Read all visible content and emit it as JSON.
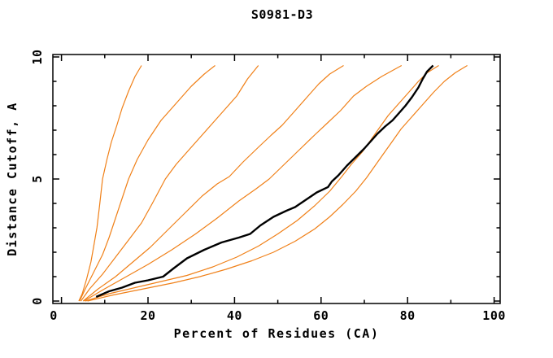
{
  "title": "S0981-D3",
  "colors": {
    "background": "#ffffff",
    "frame": "#000000",
    "orange_series": "#f08018",
    "black_series": "#000000",
    "text": "#000000"
  },
  "chart_data": {
    "type": "line",
    "title": "S0981-D3",
    "xlabel": "Percent of Residues (CA)",
    "ylabel": "Distance Cutoff, A",
    "xlim": [
      0,
      100
    ],
    "ylim": [
      0,
      10
    ],
    "grid": "off",
    "legend": "none",
    "x_major_ticks": [
      0,
      20,
      40,
      60,
      80,
      100
    ],
    "x_minor_ticks": [
      10,
      30,
      50,
      70,
      90
    ],
    "y_major_ticks": [
      0,
      5,
      10
    ],
    "y_minor_ticks": [
      1,
      2,
      3,
      4,
      6,
      7,
      8,
      9
    ],
    "series": [
      {
        "name": "orange-1",
        "color": "#f08018",
        "width": 1.2,
        "points": [
          [
            4.0,
            0
          ],
          [
            4.8,
            0.3
          ],
          [
            5.8,
            0.9
          ],
          [
            6.8,
            1.6
          ],
          [
            7.4,
            2.2
          ],
          [
            8.2,
            3.0
          ],
          [
            8.8,
            3.9
          ],
          [
            9.5,
            5.0
          ],
          [
            10.5,
            5.8
          ],
          [
            11.5,
            6.5
          ],
          [
            12.8,
            7.2
          ],
          [
            14.0,
            7.9
          ],
          [
            15.5,
            8.6
          ],
          [
            17.0,
            9.2
          ],
          [
            18.5,
            9.65
          ]
        ]
      },
      {
        "name": "orange-2",
        "color": "#f08018",
        "width": 1.2,
        "points": [
          [
            4.2,
            0
          ],
          [
            5.5,
            0.5
          ],
          [
            7.5,
            1.2
          ],
          [
            9.5,
            1.9
          ],
          [
            11.0,
            2.6
          ],
          [
            12.5,
            3.4
          ],
          [
            14.0,
            4.2
          ],
          [
            15.5,
            5.0
          ],
          [
            17.5,
            5.8
          ],
          [
            20.0,
            6.6
          ],
          [
            23.0,
            7.4
          ],
          [
            26.5,
            8.1
          ],
          [
            30.0,
            8.8
          ],
          [
            33.0,
            9.3
          ],
          [
            35.5,
            9.65
          ]
        ]
      },
      {
        "name": "orange-3",
        "color": "#f08018",
        "width": 1.2,
        "points": [
          [
            4.5,
            0
          ],
          [
            6.5,
            0.5
          ],
          [
            9.5,
            1.1
          ],
          [
            12.5,
            1.8
          ],
          [
            15.5,
            2.5
          ],
          [
            18.5,
            3.2
          ],
          [
            21.0,
            4.0
          ],
          [
            24.0,
            5.0
          ],
          [
            26.5,
            5.6
          ],
          [
            29.5,
            6.2
          ],
          [
            32.5,
            6.8
          ],
          [
            35.0,
            7.3
          ],
          [
            38.0,
            7.9
          ],
          [
            40.5,
            8.4
          ],
          [
            43.0,
            9.1
          ],
          [
            45.5,
            9.65
          ]
        ]
      },
      {
        "name": "orange-4",
        "color": "#f08018",
        "width": 1.2,
        "points": [
          [
            5.0,
            0
          ],
          [
            8.5,
            0.5
          ],
          [
            12.5,
            1.0
          ],
          [
            16.5,
            1.6
          ],
          [
            20.5,
            2.2
          ],
          [
            24.5,
            2.9
          ],
          [
            28.5,
            3.6
          ],
          [
            32.5,
            4.3
          ],
          [
            36.0,
            4.8
          ],
          [
            38.8,
            5.1
          ],
          [
            42.0,
            5.7
          ],
          [
            45.5,
            6.3
          ],
          [
            48.5,
            6.8
          ],
          [
            51.0,
            7.2
          ],
          [
            54.0,
            7.8
          ],
          [
            57.0,
            8.4
          ],
          [
            59.5,
            8.9
          ],
          [
            62.0,
            9.3
          ],
          [
            65.2,
            9.65
          ]
        ]
      },
      {
        "name": "orange-5",
        "color": "#f08018",
        "width": 1.2,
        "points": [
          [
            5.2,
            0
          ],
          [
            9.5,
            0.45
          ],
          [
            14.5,
            0.95
          ],
          [
            20.0,
            1.5
          ],
          [
            25.5,
            2.1
          ],
          [
            31.0,
            2.75
          ],
          [
            36.0,
            3.4
          ],
          [
            41.0,
            4.1
          ],
          [
            45.0,
            4.6
          ],
          [
            48.0,
            5.0
          ],
          [
            51.5,
            5.6
          ],
          [
            55.0,
            6.2
          ],
          [
            58.5,
            6.8
          ],
          [
            61.5,
            7.3
          ],
          [
            64.5,
            7.8
          ],
          [
            67.5,
            8.4
          ],
          [
            70.5,
            8.8
          ],
          [
            74.0,
            9.2
          ],
          [
            78.6,
            9.65
          ]
        ]
      },
      {
        "name": "orange-6",
        "color": "#f08018",
        "width": 1.2,
        "points": [
          [
            5.5,
            0
          ],
          [
            11.0,
            0.3
          ],
          [
            17.0,
            0.55
          ],
          [
            23.0,
            0.8
          ],
          [
            29.0,
            1.05
          ],
          [
            35.0,
            1.4
          ],
          [
            40.5,
            1.8
          ],
          [
            45.5,
            2.25
          ],
          [
            50.0,
            2.75
          ],
          [
            54.5,
            3.3
          ],
          [
            58.5,
            3.9
          ],
          [
            62.0,
            4.5
          ],
          [
            64.8,
            5.1
          ],
          [
            67.0,
            5.6
          ],
          [
            69.5,
            6.1
          ],
          [
            71.5,
            6.6
          ],
          [
            73.5,
            7.1
          ],
          [
            75.5,
            7.6
          ],
          [
            78.0,
            8.1
          ],
          [
            80.5,
            8.6
          ],
          [
            82.5,
            9.0
          ],
          [
            84.5,
            9.35
          ],
          [
            87.2,
            9.65
          ]
        ]
      },
      {
        "name": "orange-7",
        "color": "#f08018",
        "width": 1.2,
        "points": [
          [
            6.0,
            0
          ],
          [
            12.0,
            0.25
          ],
          [
            19.0,
            0.5
          ],
          [
            26.0,
            0.75
          ],
          [
            32.0,
            1.0
          ],
          [
            38.0,
            1.3
          ],
          [
            44.0,
            1.65
          ],
          [
            49.0,
            2.0
          ],
          [
            54.0,
            2.45
          ],
          [
            58.5,
            2.95
          ],
          [
            62.0,
            3.45
          ],
          [
            65.0,
            3.95
          ],
          [
            68.0,
            4.5
          ],
          [
            70.5,
            5.05
          ],
          [
            72.5,
            5.55
          ],
          [
            74.5,
            6.05
          ],
          [
            76.5,
            6.55
          ],
          [
            78.5,
            7.05
          ],
          [
            81.0,
            7.55
          ],
          [
            83.5,
            8.05
          ],
          [
            86.0,
            8.55
          ],
          [
            88.5,
            9.0
          ],
          [
            91.0,
            9.35
          ],
          [
            93.8,
            9.65
          ]
        ]
      },
      {
        "name": "black-target",
        "color": "#000000",
        "width": 2.4,
        "points": [
          [
            8.0,
            0.17
          ],
          [
            11.0,
            0.4
          ],
          [
            14.0,
            0.55
          ],
          [
            17.0,
            0.75
          ],
          [
            20.0,
            0.85
          ],
          [
            23.5,
            1.0
          ],
          [
            26.0,
            1.35
          ],
          [
            29.0,
            1.75
          ],
          [
            33.0,
            2.1
          ],
          [
            37.0,
            2.4
          ],
          [
            41.0,
            2.6
          ],
          [
            43.6,
            2.75
          ],
          [
            46.0,
            3.1
          ],
          [
            49.0,
            3.45
          ],
          [
            52.0,
            3.7
          ],
          [
            54.0,
            3.85
          ],
          [
            56.5,
            4.15
          ],
          [
            59.0,
            4.45
          ],
          [
            61.6,
            4.67
          ],
          [
            62.5,
            4.9
          ],
          [
            64.0,
            5.15
          ],
          [
            66.0,
            5.55
          ],
          [
            68.0,
            5.9
          ],
          [
            70.0,
            6.25
          ],
          [
            71.5,
            6.55
          ],
          [
            73.0,
            6.85
          ],
          [
            74.8,
            7.15
          ],
          [
            76.5,
            7.4
          ],
          [
            78.0,
            7.7
          ],
          [
            79.5,
            8.0
          ],
          [
            81.0,
            8.35
          ],
          [
            82.5,
            8.75
          ],
          [
            83.5,
            9.1
          ],
          [
            84.5,
            9.4
          ],
          [
            85.9,
            9.65
          ]
        ]
      }
    ]
  }
}
